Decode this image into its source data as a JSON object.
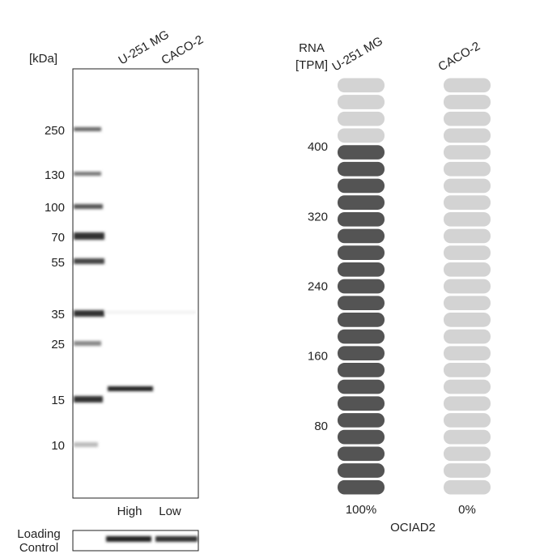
{
  "western_blot": {
    "unit_label": "[kDa]",
    "lanes": [
      "U-251 MG",
      "CACO-2"
    ],
    "markers": [
      "250",
      "130",
      "100",
      "70",
      "55",
      "35",
      "25",
      "15",
      "10"
    ],
    "levels": [
      "High",
      "Low"
    ],
    "loading_control_lines": [
      "Loading",
      "Control"
    ]
  },
  "rna": {
    "axis_label_lines": [
      "RNA",
      "[TPM]"
    ],
    "cell_lines": [
      "U-251 MG",
      "CACO-2"
    ],
    "tpm_values": [
      410,
      0
    ],
    "ylim": [
      0,
      480
    ],
    "yticks": [
      80,
      160,
      240,
      320,
      400
    ],
    "percent_labels": [
      "100%",
      "0%"
    ],
    "gene": "OCIAD2",
    "dark_color": "#545454",
    "light_color": "#d3d3d3"
  }
}
